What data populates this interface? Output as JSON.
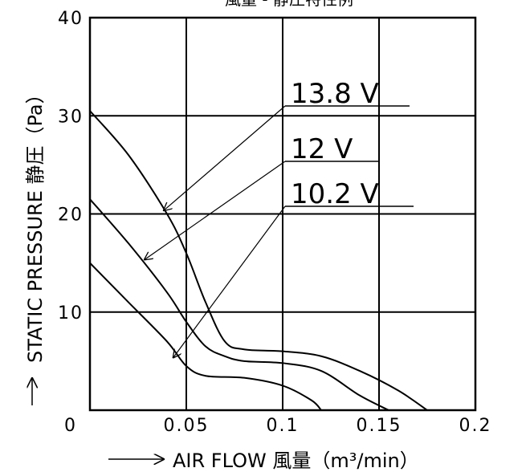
{
  "chart_data": {
    "type": "line",
    "title": "風量 - 静圧特性例",
    "xlabel": "AIR FLOW 風量（m³/min）",
    "ylabel": "STATIC PRESSURE 静圧（Pa）",
    "xlim": [
      0,
      0.2
    ],
    "ylim": [
      0,
      40
    ],
    "x_ticks": [
      {
        "value": 0,
        "label": "0"
      },
      {
        "value": 0.05,
        "label": "0.05"
      },
      {
        "value": 0.1,
        "label": "0.1"
      },
      {
        "value": 0.15,
        "label": "0.15"
      },
      {
        "value": 0.2,
        "label": "0.2"
      }
    ],
    "y_ticks": [
      {
        "value": 10,
        "label": "10"
      },
      {
        "value": 20,
        "label": "20"
      },
      {
        "value": 30,
        "label": "30"
      },
      {
        "value": 40,
        "label": "40"
      }
    ],
    "grid": true,
    "series": [
      {
        "name": "13.8 V",
        "x": [
          0,
          0.02,
          0.04,
          0.05,
          0.06,
          0.07,
          0.08,
          0.1,
          0.12,
          0.14,
          0.16,
          0.175
        ],
        "y": [
          30.5,
          26,
          20,
          16,
          11,
          7,
          6.2,
          6,
          5.5,
          4,
          2,
          0
        ]
      },
      {
        "name": "12 V",
        "x": [
          0,
          0.02,
          0.04,
          0.05,
          0.06,
          0.07,
          0.08,
          0.1,
          0.12,
          0.14,
          0.155
        ],
        "y": [
          21.5,
          17,
          12,
          9,
          6.5,
          5.5,
          5,
          4.8,
          4,
          1.5,
          0
        ]
      },
      {
        "name": "10.2 V",
        "x": [
          0,
          0.02,
          0.04,
          0.05,
          0.06,
          0.08,
          0.1,
          0.115,
          0.12
        ],
        "y": [
          15,
          11,
          7,
          4.5,
          3.5,
          3.3,
          2.5,
          1,
          0
        ]
      }
    ],
    "annotations": [
      {
        "label": "13.8 V",
        "target": [
          0.038,
          20.3
        ]
      },
      {
        "label": "12 V",
        "target": [
          0.028,
          15.3
        ]
      },
      {
        "label": "10.2 V",
        "target": [
          0.043,
          5.3
        ]
      }
    ]
  }
}
